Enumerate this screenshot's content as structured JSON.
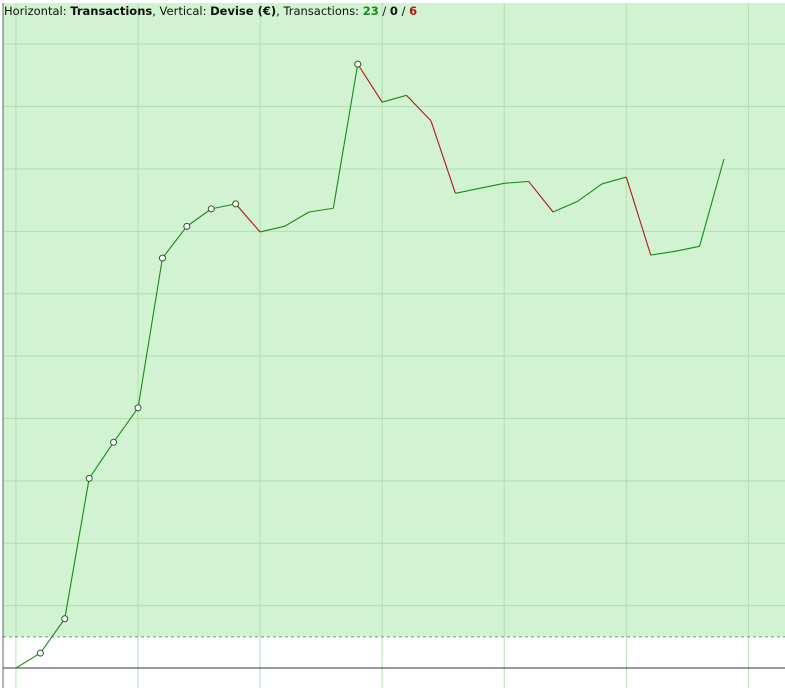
{
  "header": {
    "h_label": "Horizontal: ",
    "h_value": "Transactions",
    "v_label": ", Vertical: ",
    "v_value": "Devise (€)",
    "t_label": ", Transactions: ",
    "wins": 23,
    "sep": " / ",
    "even": 0,
    "losses": 6
  },
  "chart_data": {
    "type": "line",
    "x": [
      0,
      1,
      2,
      3,
      4,
      5,
      6,
      7,
      8,
      9,
      10,
      11,
      12,
      13,
      14,
      15,
      16,
      17,
      18,
      19,
      20,
      21,
      22,
      23,
      24,
      25,
      26,
      27,
      28,
      29
    ],
    "series": [
      {
        "values": [
          0,
          0.24,
          0.79,
          3.04,
          3.62,
          4.17,
          6.57,
          7.08,
          7.36,
          7.44,
          6.99,
          7.08,
          7.31,
          7.37,
          9.68,
          9.07,
          9.18,
          8.77,
          7.61,
          7.69,
          7.77,
          7.8,
          7.31,
          7.48,
          7.76,
          7.87,
          6.62,
          6.68,
          6.76,
          8.16
        ],
        "color": "#1a8a1a",
        "down_color": "#b01818"
      }
    ],
    "markers": [
      1,
      2,
      3,
      4,
      5,
      6,
      7,
      8,
      9,
      14
    ],
    "xlim": [
      -0.53,
      31.5
    ],
    "ylim": [
      -0.32,
      10.66
    ],
    "xticks": [
      0,
      5,
      10,
      15,
      20,
      25,
      30
    ],
    "yticks": [
      1,
      2,
      3,
      4,
      5,
      6,
      7,
      8,
      9,
      10
    ],
    "level": 0.5,
    "grid": true,
    "fill": "#d1f3d1"
  }
}
